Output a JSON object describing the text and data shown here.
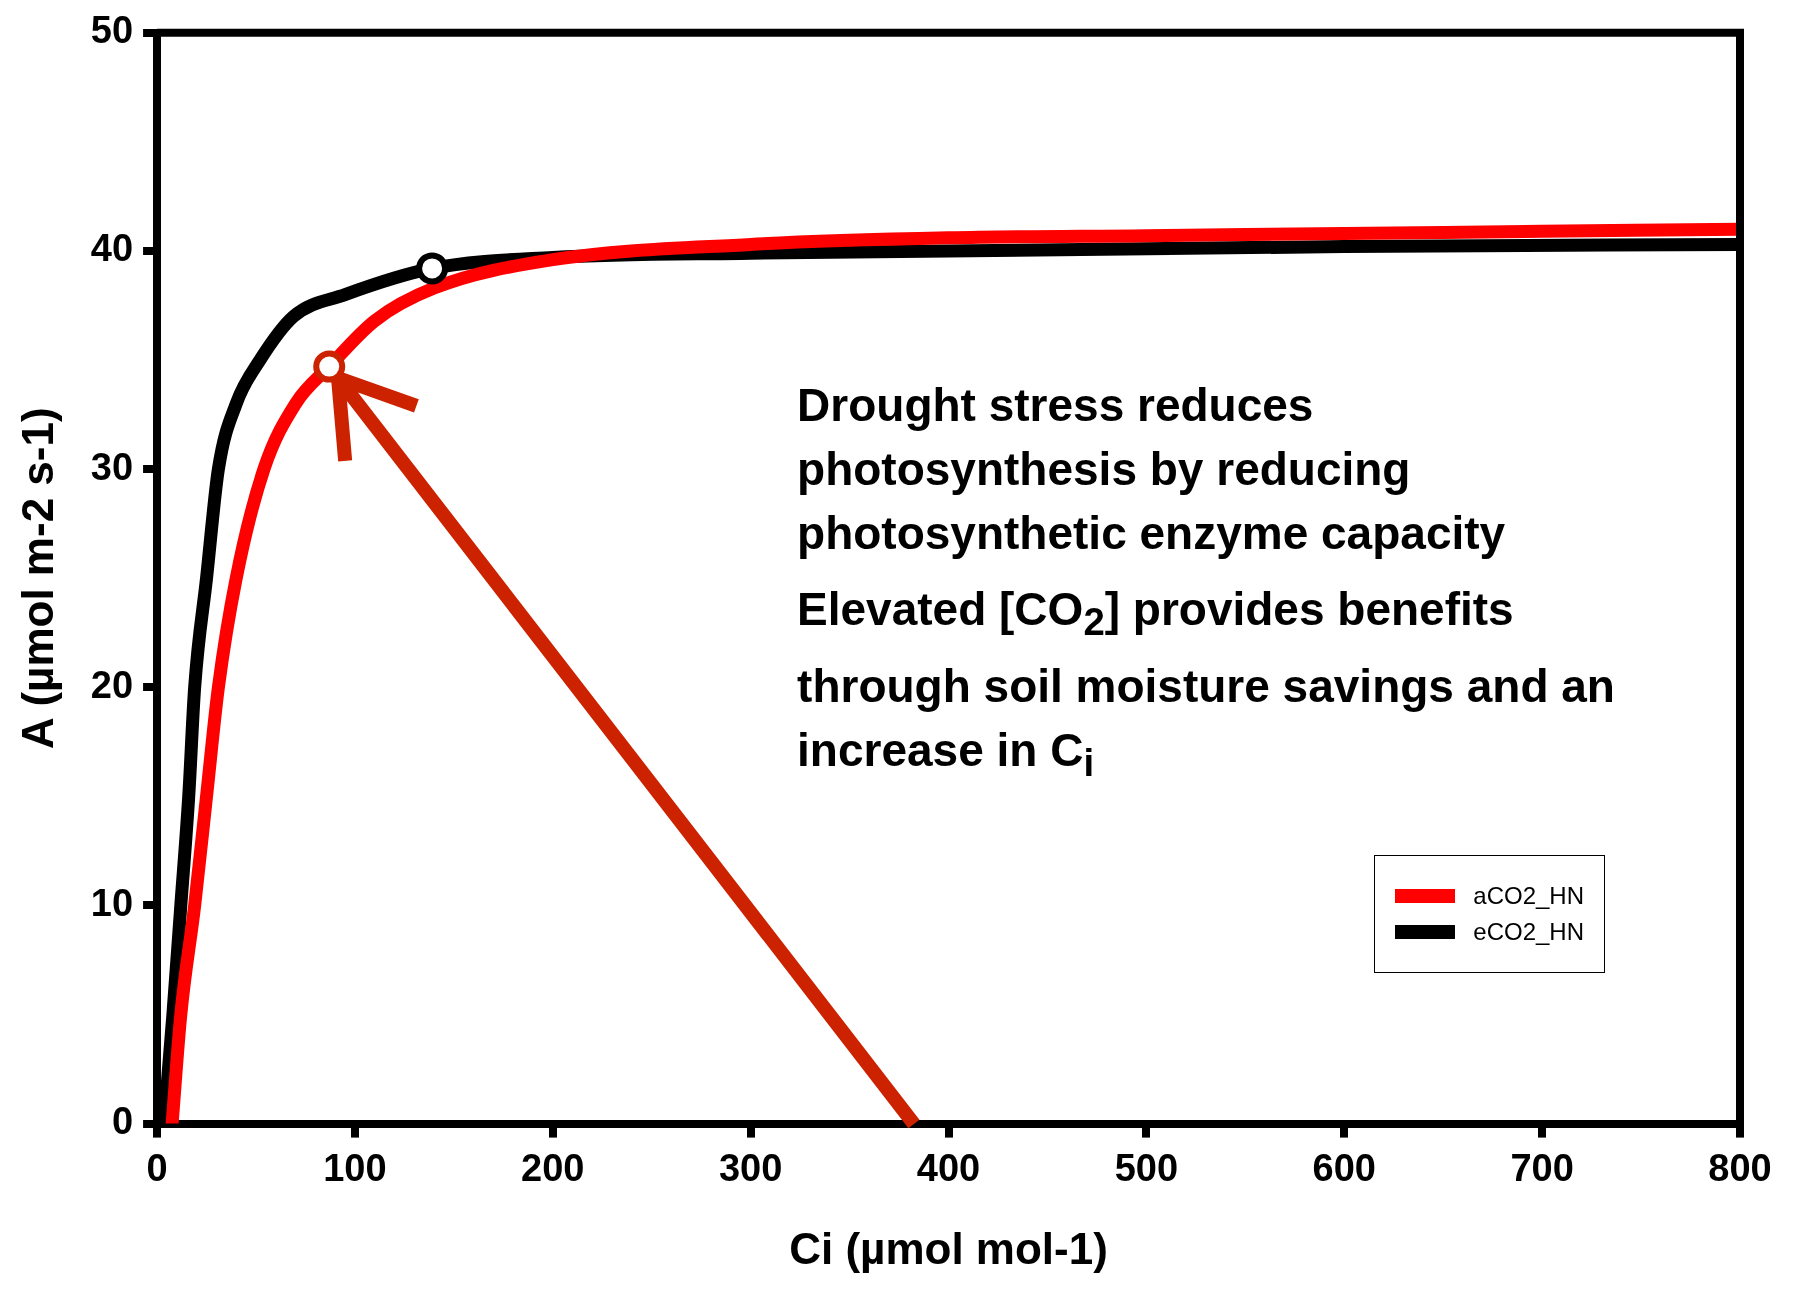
{
  "chart_data": {
    "type": "line",
    "xlabel": "Ci (µmol mol-1)",
    "ylabel": "A (µmol m-2 s-1)",
    "xlim": [
      0,
      800
    ],
    "xticks": [
      0,
      100,
      200,
      300,
      400,
      500,
      600,
      700,
      800
    ],
    "ylim": [
      0,
      50
    ],
    "yticks": [
      0,
      10,
      20,
      30,
      40,
      50
    ],
    "grid": false,
    "legend": "bottom right",
    "line_style": "solid",
    "annotations": [
      "Drought stress reduces photosynthesis by reducing photosynthetic enzyme capacity",
      "Elevated [CO$_{2}$] provides benefits through soil moisture savings and an increase in C$_{i}$"
    ],
    "series": [
      {
        "name": "aCO2_HN",
        "color": "#ff0000",
        "x": [
          7.6,
          12,
          19,
          25,
          31,
          40,
          54,
          70,
          87,
          110,
          140,
          200,
          300,
          400,
          500,
          600,
          700,
          800
        ],
        "values": [
          0,
          5,
          10,
          15,
          20,
          25,
          30,
          33,
          34.7,
          36.8,
          38.3,
          39.6,
          40.3,
          40.6,
          40.7,
          40.8,
          40.9,
          41.0
        ]
      },
      {
        "name": "eCO2_HN",
        "color": "#000000",
        "x": [
          3.5,
          8,
          12,
          16,
          19,
          25,
          31,
          40,
          52,
          69,
          95,
          139,
          200,
          300,
          400,
          600,
          800
        ],
        "values": [
          0,
          5,
          10,
          15,
          20,
          25,
          30,
          33,
          35,
          37,
          38,
          39.2,
          39.7,
          39.9,
          40,
          40.2,
          40.3
        ]
      },
      {
        "type": "scatter",
        "marker": "circle",
        "color": "#cc2200",
        "x": [
          87
        ],
        "values": [
          34.7
        ]
      },
      {
        "type": "scatter",
        "marker": "circle",
        "color": "#000000",
        "x": [
          139
        ],
        "values": [
          39.2
        ]
      }
    ]
  }
}
